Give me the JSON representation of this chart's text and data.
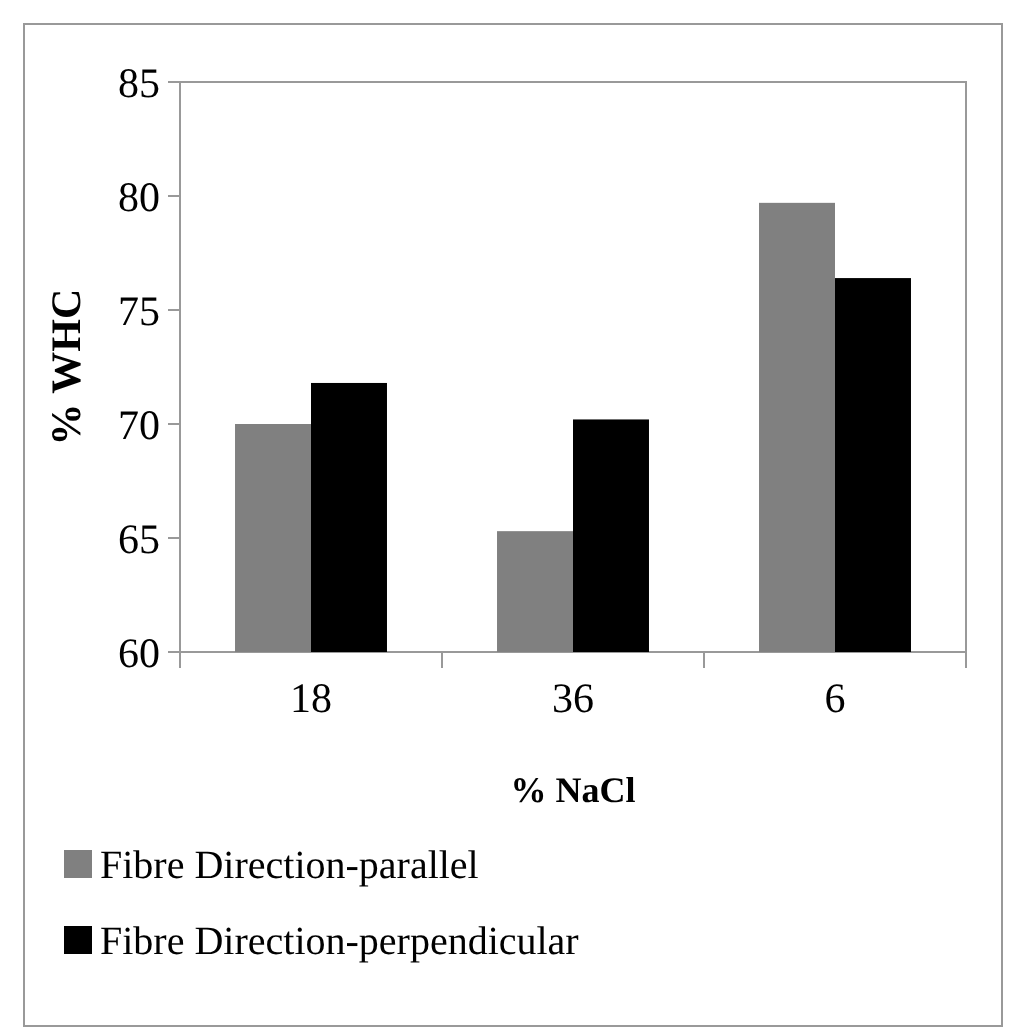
{
  "chart_data": {
    "type": "bar",
    "xlabel": "% NaCl",
    "ylabel": "% WHC",
    "categories": [
      "18",
      "36",
      "6"
    ],
    "series": [
      {
        "name": "Fibre Direction-parallel",
        "color": "#808080",
        "values": [
          70.0,
          65.3,
          79.7
        ]
      },
      {
        "name": "Fibre Direction-perpendicular",
        "color": "#000000",
        "values": [
          71.8,
          70.2,
          76.4
        ]
      }
    ],
    "ylim": [
      60,
      85
    ],
    "yticks": [
      60,
      65,
      70,
      75,
      80,
      85
    ],
    "grid": false,
    "legend": "bottom"
  }
}
